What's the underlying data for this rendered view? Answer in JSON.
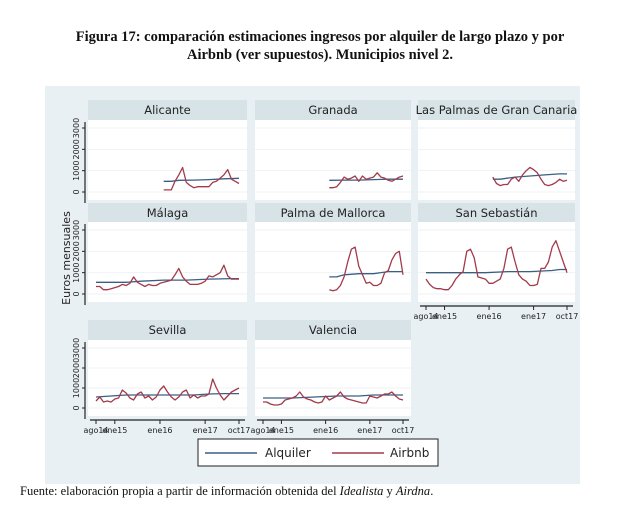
{
  "title_line1": "Figura 17: comparación estimaciones ingresos por alquiler de largo plazo y por",
  "title_line2": "Airbnb (ver supuestos). Municipios nivel 2.",
  "source": {
    "prefix": "Fuente: elaboración propia a partir de información obtenida del ",
    "idealista": "Idealista",
    "and": " y ",
    "airdna": "Airdna",
    "suffix": "."
  },
  "chart_data": {
    "type": "line",
    "title": "Figura 17: comparación estimaciones ingresos por alquiler de largo plazo y por Airbnb (ver supuestos). Municipios nivel 2.",
    "ylabel": "Euros mensuales",
    "xlabel": "",
    "ylim": [
      0,
      3000
    ],
    "xlim": [
      0,
      38
    ],
    "x_unit": "months since ago14",
    "yticks": [
      "0",
      "1000",
      "2000",
      "3000"
    ],
    "xticks": [
      {
        "label": "ago14",
        "x": 0
      },
      {
        "label": "ene15",
        "x": 5
      },
      {
        "label": "ene16",
        "x": 17
      },
      {
        "label": "ene17",
        "x": 29
      },
      {
        "label": "oct17",
        "x": 38
      }
    ],
    "grid": true,
    "legend": {
      "position": "bottom",
      "entries": [
        {
          "name": "Alquiler",
          "color": "#3b5f82"
        },
        {
          "name": "Airbnb",
          "color": "#a33a4a"
        }
      ]
    },
    "panels": [
      {
        "name": "Alicante",
        "series": [
          {
            "name": "Alquiler",
            "x": [
              18,
              20,
              22,
              26,
              30,
              34,
              38
            ],
            "values": [
              500,
              500,
              550,
              560,
              580,
              620,
              640
            ]
          },
          {
            "name": "Airbnb",
            "x": [
              18,
              19,
              20,
              21,
              22,
              23,
              24,
              25,
              26,
              27,
              28,
              29,
              30,
              31,
              32,
              33,
              34,
              35,
              36,
              37,
              38
            ],
            "values": [
              100,
              100,
              100,
              500,
              800,
              1150,
              450,
              300,
              200,
              250,
              250,
              250,
              250,
              450,
              500,
              650,
              800,
              1050,
              600,
              500,
              400
            ]
          }
        ]
      },
      {
        "name": "Granada",
        "series": [
          {
            "name": "Alquiler",
            "x": [
              18,
              22,
              26,
              30,
              34,
              38
            ],
            "values": [
              550,
              560,
              560,
              580,
              600,
              600
            ]
          },
          {
            "name": "Airbnb",
            "x": [
              18,
              19,
              20,
              21,
              22,
              23,
              24,
              25,
              26,
              27,
              28,
              29,
              30,
              31,
              32,
              33,
              34,
              35,
              36,
              37,
              38
            ],
            "values": [
              200,
              200,
              250,
              450,
              700,
              600,
              650,
              750,
              500,
              750,
              600,
              650,
              700,
              900,
              700,
              650,
              550,
              500,
              600,
              700,
              750
            ]
          }
        ]
      },
      {
        "name": "Las Palmas de Gran Canaria",
        "series": [
          {
            "name": "Alquiler",
            "x": [
              18,
              20,
              24,
              28,
              32,
              36,
              38
            ],
            "values": [
              600,
              600,
              700,
              750,
              800,
              850,
              850
            ]
          },
          {
            "name": "Airbnb",
            "x": [
              18,
              19,
              20,
              21,
              22,
              23,
              24,
              25,
              26,
              27,
              28,
              29,
              30,
              31,
              32,
              33,
              34,
              35,
              36,
              37,
              38
            ],
            "values": [
              700,
              400,
              300,
              350,
              350,
              600,
              700,
              500,
              800,
              1000,
              1150,
              1050,
              900,
              600,
              350,
              300,
              350,
              450,
              600,
              500,
              550
            ]
          }
        ]
      },
      {
        "name": "Málaga",
        "series": [
          {
            "name": "Alquiler",
            "x": [
              0,
              8,
              12,
              18,
              24,
              30,
              36,
              38
            ],
            "values": [
              550,
              550,
              600,
              650,
              650,
              700,
              720,
              720
            ]
          },
          {
            "name": "Airbnb",
            "x": [
              0,
              1,
              2,
              3,
              4,
              5,
              6,
              7,
              8,
              9,
              10,
              11,
              12,
              13,
              14,
              15,
              16,
              17,
              18,
              19,
              20,
              21,
              22,
              23,
              24,
              25,
              26,
              27,
              28,
              29,
              30,
              31,
              32,
              33,
              34,
              35,
              36,
              37,
              38
            ],
            "values": [
              350,
              350,
              200,
              200,
              250,
              300,
              350,
              450,
              400,
              500,
              800,
              550,
              450,
              350,
              450,
              400,
              400,
              500,
              550,
              600,
              650,
              900,
              1200,
              800,
              600,
              450,
              450,
              450,
              500,
              600,
              850,
              800,
              900,
              1000,
              1350,
              850,
              700,
              700,
              700
            ]
          }
        ]
      },
      {
        "name": "Palma de Mallorca",
        "series": [
          {
            "name": "Alquiler",
            "x": [
              18,
              20,
              22,
              26,
              30,
              34,
              38
            ],
            "values": [
              800,
              800,
              900,
              950,
              950,
              1050,
              1050
            ]
          },
          {
            "name": "Airbnb",
            "x": [
              18,
              19,
              20,
              21,
              22,
              23,
              24,
              25,
              26,
              27,
              28,
              29,
              30,
              31,
              32,
              33,
              34,
              35,
              36,
              37,
              38
            ],
            "values": [
              200,
              150,
              200,
              400,
              800,
              1500,
              2100,
              2200,
              1300,
              900,
              500,
              550,
              400,
              400,
              500,
              1000,
              1100,
              1600,
              1900,
              2000,
              900
            ]
          }
        ]
      },
      {
        "name": "San Sebastián",
        "series": [
          {
            "name": "Alquiler",
            "x": [
              0,
              8,
              16,
              22,
              28,
              34,
              36,
              38
            ],
            "values": [
              1000,
              1000,
              1000,
              1050,
              1050,
              1100,
              1150,
              1150
            ]
          },
          {
            "name": "Airbnb",
            "x": [
              0,
              1,
              2,
              3,
              4,
              5,
              6,
              7,
              8,
              9,
              10,
              11,
              12,
              13,
              14,
              15,
              16,
              17,
              18,
              19,
              20,
              21,
              22,
              23,
              24,
              25,
              26,
              27,
              28,
              29,
              30,
              31,
              32,
              33,
              34,
              35,
              36,
              37,
              38
            ],
            "values": [
              700,
              450,
              300,
              250,
              250,
              200,
              200,
              400,
              700,
              900,
              1050,
              2000,
              2100,
              1700,
              800,
              750,
              700,
              500,
              500,
              600,
              700,
              1200,
              2100,
              2200,
              1500,
              900,
              700,
              600,
              400,
              400,
              450,
              1200,
              1200,
              1500,
              2200,
              2500,
              2000,
              1500,
              1000
            ]
          }
        ]
      },
      {
        "name": "Sevilla",
        "series": [
          {
            "name": "Alquiler",
            "x": [
              0,
              4,
              8,
              14,
              20,
              26,
              30,
              34,
              38
            ],
            "values": [
              550,
              600,
              650,
              650,
              650,
              650,
              700,
              720,
              720
            ]
          },
          {
            "name": "Airbnb",
            "x": [
              0,
              1,
              2,
              3,
              4,
              5,
              6,
              7,
              8,
              9,
              10,
              11,
              12,
              13,
              14,
              15,
              16,
              17,
              18,
              19,
              20,
              21,
              22,
              23,
              24,
              25,
              26,
              27,
              28,
              29,
              30,
              31,
              32,
              33,
              34,
              35,
              36,
              37,
              38
            ],
            "values": [
              350,
              550,
              300,
              350,
              300,
              450,
              500,
              900,
              750,
              500,
              400,
              700,
              800,
              500,
              600,
              400,
              550,
              900,
              1100,
              800,
              550,
              400,
              550,
              800,
              900,
              500,
              650,
              500,
              600,
              600,
              700,
              1450,
              1000,
              650,
              400,
              600,
              800,
              900,
              1000
            ]
          }
        ]
      },
      {
        "name": "Valencia",
        "series": [
          {
            "name": "Alquiler",
            "x": [
              0,
              8,
              14,
              20,
              26,
              30,
              34,
              38
            ],
            "values": [
              500,
              500,
              550,
              600,
              600,
              650,
              650,
              650
            ]
          },
          {
            "name": "Airbnb",
            "x": [
              0,
              1,
              2,
              3,
              4,
              5,
              6,
              7,
              8,
              9,
              10,
              11,
              12,
              13,
              14,
              15,
              16,
              17,
              18,
              19,
              20,
              21,
              22,
              23,
              24,
              25,
              26,
              27,
              28,
              29,
              30,
              31,
              32,
              33,
              34,
              35,
              36,
              37,
              38
            ],
            "values": [
              300,
              300,
              200,
              150,
              150,
              200,
              400,
              450,
              500,
              600,
              800,
              550,
              450,
              400,
              300,
              250,
              300,
              600,
              400,
              500,
              600,
              800,
              550,
              450,
              400,
              350,
              300,
              250,
              250,
              600,
              550,
              500,
              600,
              700,
              700,
              800,
              600,
              450,
              400
            ]
          }
        ]
      }
    ]
  }
}
